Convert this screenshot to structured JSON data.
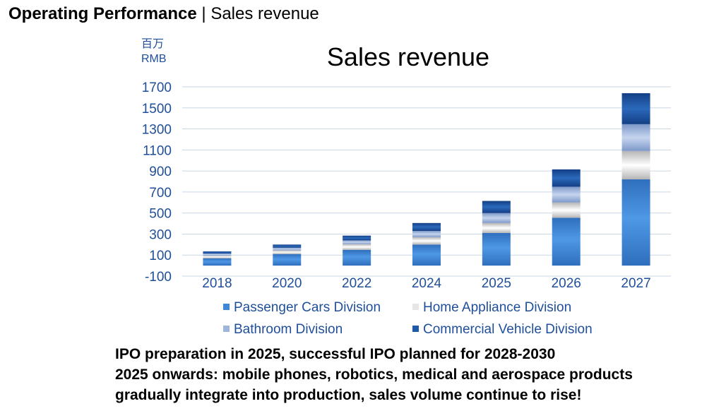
{
  "header": {
    "title_bold": "Operating Performance",
    "separator": " | ",
    "title_rest": "Sales revenue"
  },
  "unit": {
    "line1": "百万",
    "line2": "RMB"
  },
  "chart_data": {
    "type": "bar",
    "stacked": true,
    "title": "Sales revenue",
    "ylabel": "百万 RMB",
    "ylim": [
      -100,
      1700
    ],
    "yticks": [
      -100,
      100,
      300,
      500,
      700,
      900,
      1100,
      1300,
      1500,
      1700
    ],
    "categories": [
      "2018",
      "2020",
      "2022",
      "2024",
      "2025",
      "2026",
      "2027"
    ],
    "series": [
      {
        "name": "Passenger Cars Division",
        "color": "#3f87d8",
        "values": [
          70,
          110,
          150,
          200,
          310,
          455,
          820
        ]
      },
      {
        "name": "Home Appliance Division",
        "color": "#e6e6e6",
        "values": [
          25,
          35,
          55,
          70,
          95,
          145,
          270
        ]
      },
      {
        "name": "Bathroom Division",
        "color": "#9fb5da",
        "values": [
          20,
          25,
          35,
          60,
          95,
          150,
          255
        ]
      },
      {
        "name": "Commercial Vehicle Division",
        "color": "#1f5aa8",
        "values": [
          20,
          30,
          45,
          75,
          115,
          165,
          295
        ]
      }
    ]
  },
  "notes": [
    "IPO preparation in 2025, successful IPO planned for 2028-2030",
    "2025 onwards: mobile phones, robotics, medical and aerospace products",
    "gradually integrate into production, sales volume continue to rise!"
  ]
}
